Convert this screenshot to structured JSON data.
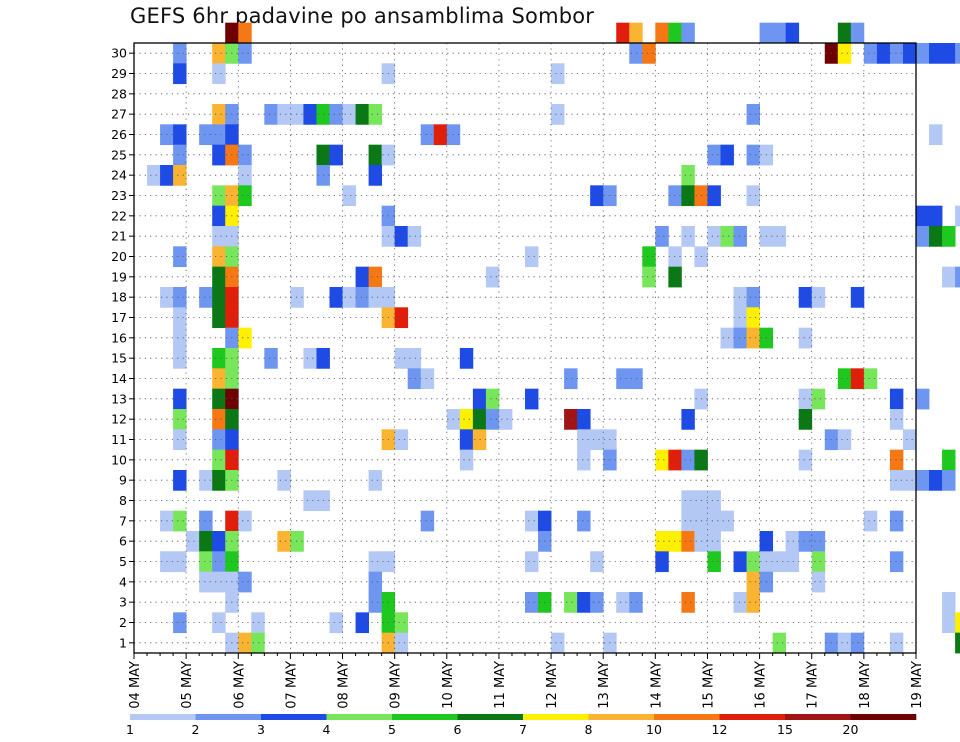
{
  "chart_data": {
    "type": "heatmap",
    "title": "GEFS 6hr padavine po ansamblima Sombor",
    "xlabel": "",
    "ylabel": "",
    "y_ticks": [
      "1",
      "2",
      "3",
      "4",
      "5",
      "6",
      "7",
      "8",
      "9",
      "10",
      "11",
      "12",
      "13",
      "14",
      "15",
      "16",
      "17",
      "18",
      "19",
      "20",
      "21",
      "22",
      "23",
      "24",
      "25",
      "26",
      "27",
      "28",
      "29",
      "30"
    ],
    "x_ticks": [
      "04 MAY",
      "05 MAY",
      "06 MAY",
      "07 MAY",
      "08 MAY",
      "09 MAY",
      "10 MAY",
      "11 MAY",
      "12 MAY",
      "13 MAY",
      "14 MAY",
      "15 MAY",
      "16 MAY",
      "17 MAY",
      "18 MAY",
      "19 MAY"
    ],
    "x_range": [
      0,
      60
    ],
    "y_range": [
      1,
      30
    ],
    "steps_per_day": 4,
    "grid": true,
    "legend_position": "bottom",
    "levels": [
      "1",
      "2",
      "3",
      "4",
      "5",
      "6",
      "7",
      "8",
      "10",
      "12",
      "15",
      "20"
    ],
    "palette": [
      "#b4c8f5",
      "#6e96f0",
      "#1e4be6",
      "#78e65a",
      "#1ec81e",
      "#0a7814",
      "#fff000",
      "#fab432",
      "#f57814",
      "#e11e0a",
      "#a01414",
      "#6e0000"
    ],
    "cells": [
      [
        7,
        30,
        11
      ],
      [
        8,
        30,
        8
      ],
      [
        37,
        30,
        9
      ],
      [
        38,
        30,
        7
      ],
      [
        40,
        30,
        8
      ],
      [
        41,
        30,
        4
      ],
      [
        42,
        30,
        1
      ],
      [
        48,
        30,
        1
      ],
      [
        49,
        30,
        1
      ],
      [
        50,
        30,
        2
      ],
      [
        54,
        30,
        5
      ],
      [
        55,
        30,
        1
      ],
      [
        3,
        29,
        1
      ],
      [
        6,
        29,
        7
      ],
      [
        7,
        29,
        3
      ],
      [
        8,
        29,
        1
      ],
      [
        38,
        29,
        1
      ],
      [
        39,
        29,
        8
      ],
      [
        53,
        29,
        11
      ],
      [
        54,
        29,
        6
      ],
      [
        56,
        29,
        1
      ],
      [
        57,
        29,
        2
      ],
      [
        58,
        29,
        1
      ],
      [
        59,
        29,
        2
      ],
      [
        60,
        29,
        1
      ],
      [
        61,
        29,
        2
      ],
      [
        62,
        29,
        2
      ],
      [
        63,
        29,
        1
      ],
      [
        64,
        29,
        7
      ],
      [
        65,
        29,
        7
      ],
      [
        3,
        28,
        2
      ],
      [
        6,
        28,
        0
      ],
      [
        19,
        28,
        0
      ],
      [
        32,
        28,
        0
      ],
      [
        6,
        26,
        7
      ],
      [
        7,
        26,
        1
      ],
      [
        10,
        26,
        1
      ],
      [
        11,
        26,
        0
      ],
      [
        12,
        26,
        0
      ],
      [
        13,
        26,
        2
      ],
      [
        14,
        26,
        4
      ],
      [
        15,
        26,
        1
      ],
      [
        16,
        26,
        0
      ],
      [
        17,
        26,
        5
      ],
      [
        18,
        26,
        3
      ],
      [
        32,
        26,
        0
      ],
      [
        47,
        26,
        1
      ],
      [
        64,
        26,
        1
      ],
      [
        65,
        26,
        6
      ],
      [
        2,
        25,
        1
      ],
      [
        3,
        25,
        2
      ],
      [
        5,
        25,
        1
      ],
      [
        6,
        25,
        1
      ],
      [
        7,
        25,
        2
      ],
      [
        22,
        25,
        1
      ],
      [
        23,
        25,
        9
      ],
      [
        24,
        25,
        1
      ],
      [
        61,
        25,
        0
      ],
      [
        64,
        25,
        0
      ],
      [
        3,
        24,
        1
      ],
      [
        6,
        24,
        2
      ],
      [
        7,
        24,
        8
      ],
      [
        8,
        24,
        1
      ],
      [
        14,
        24,
        5
      ],
      [
        15,
        24,
        2
      ],
      [
        18,
        24,
        5
      ],
      [
        19,
        24,
        0
      ],
      [
        44,
        24,
        1
      ],
      [
        45,
        24,
        2
      ],
      [
        47,
        24,
        1
      ],
      [
        48,
        24,
        0
      ],
      [
        64,
        24,
        4
      ],
      [
        65,
        24,
        2
      ],
      [
        1,
        23,
        0
      ],
      [
        2,
        23,
        2
      ],
      [
        3,
        23,
        7
      ],
      [
        8,
        23,
        0
      ],
      [
        14,
        23,
        1
      ],
      [
        18,
        23,
        2
      ],
      [
        42,
        23,
        3
      ],
      [
        6,
        22,
        3
      ],
      [
        7,
        22,
        7
      ],
      [
        8,
        22,
        4
      ],
      [
        16,
        22,
        0
      ],
      [
        35,
        22,
        2
      ],
      [
        36,
        22,
        1
      ],
      [
        41,
        22,
        1
      ],
      [
        42,
        22,
        5
      ],
      [
        43,
        22,
        8
      ],
      [
        44,
        22,
        2
      ],
      [
        47,
        22,
        0
      ],
      [
        6,
        21,
        2
      ],
      [
        7,
        21,
        6
      ],
      [
        19,
        21,
        1
      ],
      [
        60,
        21,
        2
      ],
      [
        61,
        21,
        2
      ],
      [
        63,
        21,
        0
      ],
      [
        64,
        21,
        0
      ],
      [
        65,
        21,
        0
      ],
      [
        6,
        20,
        0
      ],
      [
        7,
        20,
        0
      ],
      [
        19,
        20,
        0
      ],
      [
        20,
        20,
        2
      ],
      [
        21,
        20,
        0
      ],
      [
        40,
        20,
        1
      ],
      [
        42,
        20,
        0
      ],
      [
        44,
        20,
        0
      ],
      [
        45,
        20,
        3
      ],
      [
        46,
        20,
        1
      ],
      [
        48,
        20,
        0
      ],
      [
        49,
        20,
        0
      ],
      [
        60,
        20,
        1
      ],
      [
        61,
        20,
        5
      ],
      [
        62,
        20,
        4
      ],
      [
        64,
        20,
        4
      ],
      [
        65,
        20,
        4
      ],
      [
        3,
        19,
        1
      ],
      [
        6,
        19,
        7
      ],
      [
        7,
        19,
        3
      ],
      [
        30,
        19,
        0
      ],
      [
        39,
        19,
        4
      ],
      [
        41,
        19,
        0
      ],
      [
        43,
        19,
        0
      ],
      [
        6,
        18,
        5
      ],
      [
        7,
        18,
        8
      ],
      [
        17,
        18,
        2
      ],
      [
        18,
        18,
        8
      ],
      [
        27,
        18,
        0
      ],
      [
        39,
        18,
        3
      ],
      [
        41,
        18,
        5
      ],
      [
        62,
        18,
        0
      ],
      [
        63,
        18,
        1
      ],
      [
        64,
        18,
        1
      ],
      [
        2,
        17,
        0
      ],
      [
        3,
        17,
        1
      ],
      [
        5,
        17,
        1
      ],
      [
        6,
        17,
        5
      ],
      [
        7,
        17,
        9
      ],
      [
        12,
        17,
        0
      ],
      [
        15,
        17,
        2
      ],
      [
        16,
        17,
        0
      ],
      [
        17,
        17,
        1
      ],
      [
        18,
        17,
        0
      ],
      [
        19,
        17,
        0
      ],
      [
        46,
        17,
        0
      ],
      [
        47,
        17,
        1
      ],
      [
        51,
        17,
        2
      ],
      [
        52,
        17,
        0
      ],
      [
        55,
        17,
        2
      ],
      [
        3,
        16,
        0
      ],
      [
        6,
        16,
        5
      ],
      [
        7,
        16,
        9
      ],
      [
        19,
        16,
        7
      ],
      [
        20,
        16,
        9
      ],
      [
        46,
        16,
        0
      ],
      [
        47,
        16,
        6
      ],
      [
        3,
        15,
        0
      ],
      [
        7,
        15,
        1
      ],
      [
        8,
        15,
        6
      ],
      [
        45,
        15,
        0
      ],
      [
        46,
        15,
        1
      ],
      [
        47,
        15,
        7
      ],
      [
        48,
        15,
        4
      ],
      [
        51,
        15,
        0
      ],
      [
        66,
        15,
        1
      ],
      [
        3,
        14,
        0
      ],
      [
        6,
        14,
        4
      ],
      [
        7,
        14,
        3
      ],
      [
        10,
        14,
        1
      ],
      [
        13,
        14,
        0
      ],
      [
        14,
        14,
        2
      ],
      [
        20,
        14,
        0
      ],
      [
        21,
        14,
        0
      ],
      [
        25,
        14,
        2
      ],
      [
        66,
        14,
        3
      ],
      [
        6,
        13,
        7
      ],
      [
        7,
        13,
        3
      ],
      [
        21,
        13,
        1
      ],
      [
        22,
        13,
        0
      ],
      [
        33,
        13,
        1
      ],
      [
        37,
        13,
        1
      ],
      [
        38,
        13,
        1
      ],
      [
        54,
        13,
        4
      ],
      [
        55,
        13,
        9
      ],
      [
        56,
        13,
        3
      ],
      [
        3,
        12,
        2
      ],
      [
        6,
        12,
        5
      ],
      [
        7,
        12,
        11
      ],
      [
        26,
        12,
        2
      ],
      [
        27,
        12,
        3
      ],
      [
        30,
        12,
        2
      ],
      [
        43,
        12,
        0
      ],
      [
        51,
        12,
        0
      ],
      [
        52,
        12,
        3
      ],
      [
        58,
        12,
        2
      ],
      [
        60,
        12,
        1
      ],
      [
        3,
        11,
        3
      ],
      [
        6,
        11,
        8
      ],
      [
        7,
        11,
        5
      ],
      [
        24,
        11,
        0
      ],
      [
        25,
        11,
        6
      ],
      [
        26,
        11,
        5
      ],
      [
        27,
        11,
        1
      ],
      [
        28,
        11,
        0
      ],
      [
        33,
        11,
        10
      ],
      [
        34,
        11,
        2
      ],
      [
        42,
        11,
        2
      ],
      [
        51,
        11,
        5
      ],
      [
        58,
        11,
        0
      ],
      [
        3,
        10,
        0
      ],
      [
        6,
        10,
        1
      ],
      [
        7,
        10,
        2
      ],
      [
        19,
        10,
        7
      ],
      [
        20,
        10,
        0
      ],
      [
        25,
        10,
        2
      ],
      [
        26,
        10,
        7
      ],
      [
        34,
        10,
        0
      ],
      [
        35,
        10,
        0
      ],
      [
        36,
        10,
        0
      ],
      [
        53,
        10,
        1
      ],
      [
        54,
        10,
        0
      ],
      [
        59,
        10,
        0
      ],
      [
        6,
        9,
        3
      ],
      [
        7,
        9,
        9
      ],
      [
        25,
        9,
        0
      ],
      [
        34,
        9,
        0
      ],
      [
        36,
        9,
        1
      ],
      [
        40,
        9,
        6
      ],
      [
        41,
        9,
        9
      ],
      [
        42,
        9,
        1
      ],
      [
        43,
        9,
        5
      ],
      [
        51,
        9,
        0
      ],
      [
        58,
        9,
        8
      ],
      [
        62,
        9,
        4
      ],
      [
        3,
        8,
        2
      ],
      [
        5,
        8,
        0
      ],
      [
        6,
        8,
        5
      ],
      [
        7,
        8,
        3
      ],
      [
        11,
        8,
        0
      ],
      [
        18,
        8,
        0
      ],
      [
        58,
        8,
        0
      ],
      [
        59,
        8,
        0
      ],
      [
        60,
        8,
        1
      ],
      [
        61,
        8,
        2
      ],
      [
        62,
        8,
        1
      ],
      [
        13,
        7,
        0
      ],
      [
        14,
        7,
        0
      ],
      [
        42,
        7,
        0
      ],
      [
        43,
        7,
        0
      ],
      [
        44,
        7,
        0
      ],
      [
        2,
        6,
        0
      ],
      [
        3,
        6,
        3
      ],
      [
        5,
        6,
        1
      ],
      [
        7,
        6,
        9
      ],
      [
        8,
        6,
        0
      ],
      [
        22,
        6,
        1
      ],
      [
        30,
        6,
        0
      ],
      [
        31,
        6,
        2
      ],
      [
        34,
        6,
        1
      ],
      [
        42,
        6,
        0
      ],
      [
        43,
        6,
        0
      ],
      [
        44,
        6,
        0
      ],
      [
        45,
        6,
        0
      ],
      [
        56,
        6,
        0
      ],
      [
        58,
        6,
        1
      ],
      [
        4,
        5,
        0
      ],
      [
        5,
        5,
        5
      ],
      [
        6,
        5,
        2
      ],
      [
        7,
        5,
        3
      ],
      [
        11,
        5,
        7
      ],
      [
        12,
        5,
        3
      ],
      [
        31,
        5,
        1
      ],
      [
        40,
        5,
        6
      ],
      [
        41,
        5,
        6
      ],
      [
        42,
        5,
        8
      ],
      [
        43,
        5,
        0
      ],
      [
        44,
        5,
        0
      ],
      [
        48,
        5,
        2
      ],
      [
        50,
        5,
        0
      ],
      [
        51,
        5,
        1
      ],
      [
        52,
        5,
        1
      ],
      [
        66,
        5,
        0
      ],
      [
        2,
        4,
        0
      ],
      [
        3,
        4,
        0
      ],
      [
        5,
        4,
        3
      ],
      [
        6,
        4,
        1
      ],
      [
        7,
        4,
        4
      ],
      [
        18,
        4,
        0
      ],
      [
        19,
        4,
        0
      ],
      [
        30,
        4,
        0
      ],
      [
        35,
        4,
        0
      ],
      [
        40,
        4,
        2
      ],
      [
        44,
        4,
        4
      ],
      [
        46,
        4,
        2
      ],
      [
        47,
        4,
        3
      ],
      [
        48,
        4,
        0
      ],
      [
        49,
        4,
        0
      ],
      [
        50,
        4,
        0
      ],
      [
        52,
        4,
        3
      ],
      [
        58,
        4,
        1
      ],
      [
        65,
        4,
        2
      ],
      [
        5,
        3,
        0
      ],
      [
        6,
        3,
        0
      ],
      [
        7,
        3,
        0
      ],
      [
        8,
        3,
        1
      ],
      [
        18,
        3,
        1
      ],
      [
        47,
        3,
        7
      ],
      [
        48,
        3,
        1
      ],
      [
        52,
        3,
        0
      ],
      [
        65,
        3,
        4
      ],
      [
        7,
        2,
        0
      ],
      [
        18,
        2,
        1
      ],
      [
        19,
        2,
        4
      ],
      [
        30,
        2,
        1
      ],
      [
        31,
        2,
        4
      ],
      [
        33,
        2,
        3
      ],
      [
        34,
        2,
        2
      ],
      [
        35,
        2,
        1
      ],
      [
        37,
        2,
        0
      ],
      [
        38,
        2,
        1
      ],
      [
        42,
        2,
        8
      ],
      [
        46,
        2,
        0
      ],
      [
        47,
        2,
        7
      ],
      [
        62,
        2,
        0
      ],
      [
        64,
        2,
        3
      ],
      [
        65,
        2,
        0
      ],
      [
        3,
        1,
        1
      ],
      [
        6,
        1,
        0
      ],
      [
        9,
        1,
        0
      ],
      [
        15,
        1,
        0
      ],
      [
        17,
        1,
        2
      ],
      [
        19,
        1,
        4
      ],
      [
        20,
        1,
        3
      ],
      [
        62,
        1,
        0
      ],
      [
        63,
        1,
        6
      ],
      [
        66,
        1,
        2
      ],
      [
        7,
        0,
        0
      ],
      [
        8,
        0,
        7
      ],
      [
        9,
        0,
        3
      ],
      [
        19,
        0,
        7
      ],
      [
        20,
        0,
        0
      ],
      [
        32,
        0,
        0
      ],
      [
        36,
        0,
        0
      ],
      [
        49,
        0,
        3
      ],
      [
        53,
        0,
        1
      ],
      [
        54,
        0,
        0
      ],
      [
        55,
        0,
        1
      ],
      [
        58,
        0,
        0
      ],
      [
        63,
        0,
        5
      ],
      [
        64,
        0,
        4
      ]
    ]
  }
}
